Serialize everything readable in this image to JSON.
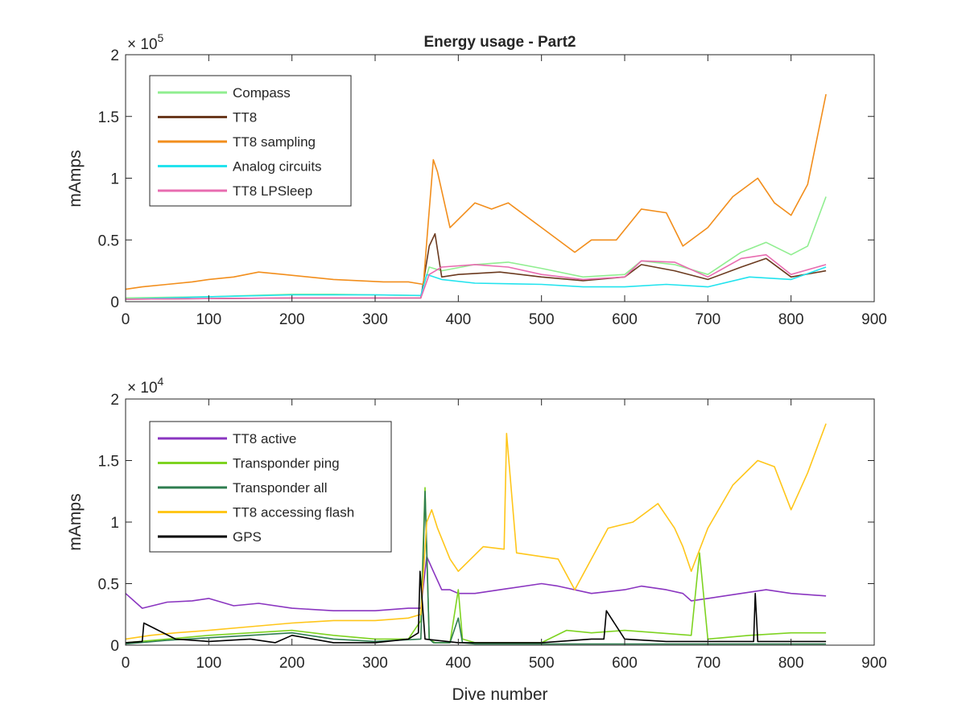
{
  "chart_data": [
    {
      "type": "line",
      "title": "Energy usage - Part2",
      "xlabel": "",
      "ylabel": "mAmps",
      "y_exponent_base": "× 10",
      "y_exponent_power": "5",
      "xlim": [
        0,
        900
      ],
      "ylim": [
        0,
        2
      ],
      "xticks": [
        "0",
        "100",
        "200",
        "300",
        "400",
        "500",
        "600",
        "700",
        "800",
        "900"
      ],
      "yticks": [
        "0",
        "0.5",
        "1",
        "1.5",
        "2"
      ],
      "grid": false,
      "legend_position": "top-left",
      "series": [
        {
          "name": "Compass",
          "color": "#90ee90",
          "x": [
            0,
            50,
            100,
            150,
            200,
            250,
            300,
            355,
            365,
            380,
            420,
            460,
            500,
            550,
            600,
            620,
            660,
            700,
            740,
            770,
            800,
            820,
            842
          ],
          "y": [
            0.03,
            0.035,
            0.04,
            0.05,
            0.06,
            0.06,
            0.055,
            0.05,
            0.28,
            0.25,
            0.3,
            0.32,
            0.27,
            0.2,
            0.22,
            0.33,
            0.3,
            0.22,
            0.4,
            0.48,
            0.38,
            0.45,
            0.85
          ]
        },
        {
          "name": "TT8",
          "color": "#6b3a1f",
          "x": [
            0,
            100,
            200,
            300,
            355,
            365,
            372,
            380,
            400,
            450,
            500,
            550,
            600,
            620,
            660,
            700,
            740,
            770,
            800,
            842
          ],
          "y": [
            0.02,
            0.025,
            0.03,
            0.03,
            0.03,
            0.45,
            0.55,
            0.2,
            0.22,
            0.24,
            0.2,
            0.17,
            0.2,
            0.3,
            0.25,
            0.18,
            0.28,
            0.35,
            0.2,
            0.25
          ]
        },
        {
          "name": "TT8 sampling",
          "color": "#f28e1c",
          "x": [
            0,
            20,
            50,
            80,
            100,
            130,
            160,
            190,
            220,
            250,
            280,
            310,
            340,
            358,
            364,
            370,
            375,
            390,
            420,
            440,
            460,
            500,
            540,
            560,
            590,
            620,
            650,
            670,
            700,
            730,
            760,
            780,
            800,
            820,
            842
          ],
          "y": [
            0.1,
            0.12,
            0.14,
            0.16,
            0.18,
            0.2,
            0.24,
            0.22,
            0.2,
            0.18,
            0.17,
            0.16,
            0.16,
            0.14,
            0.65,
            1.15,
            1.05,
            0.6,
            0.8,
            0.75,
            0.8,
            0.6,
            0.4,
            0.5,
            0.5,
            0.75,
            0.72,
            0.45,
            0.6,
            0.85,
            1.0,
            0.8,
            0.7,
            0.95,
            1.68
          ]
        },
        {
          "name": "Analog circuits",
          "color": "#22e3ee",
          "x": [
            0,
            100,
            200,
            300,
            355,
            362,
            380,
            420,
            500,
            550,
            600,
            650,
            700,
            750,
            800,
            842
          ],
          "y": [
            0.02,
            0.04,
            0.055,
            0.055,
            0.05,
            0.22,
            0.18,
            0.15,
            0.14,
            0.12,
            0.12,
            0.14,
            0.12,
            0.2,
            0.18,
            0.28
          ]
        },
        {
          "name": "TT8 LPSleep",
          "color": "#e86cb0",
          "x": [
            0,
            100,
            200,
            300,
            355,
            365,
            380,
            420,
            460,
            500,
            550,
            600,
            620,
            660,
            700,
            740,
            770,
            800,
            842
          ],
          "y": [
            0.02,
            0.025,
            0.03,
            0.03,
            0.03,
            0.22,
            0.28,
            0.3,
            0.28,
            0.22,
            0.18,
            0.2,
            0.33,
            0.32,
            0.2,
            0.35,
            0.38,
            0.22,
            0.3
          ]
        }
      ]
    },
    {
      "type": "line",
      "title": "",
      "xlabel": "Dive number",
      "ylabel": "mAmps",
      "y_exponent_base": "× 10",
      "y_exponent_power": "4",
      "xlim": [
        0,
        900
      ],
      "ylim": [
        0,
        2
      ],
      "xticks": [
        "0",
        "100",
        "200",
        "300",
        "400",
        "500",
        "600",
        "700",
        "800",
        "900"
      ],
      "yticks": [
        "0",
        "0.5",
        "1",
        "1.5",
        "2"
      ],
      "grid": false,
      "legend_position": "top-left",
      "series": [
        {
          "name": "TT8 active",
          "color": "#8a35c0",
          "x": [
            0,
            20,
            50,
            80,
            100,
            130,
            160,
            200,
            250,
            300,
            340,
            355,
            362,
            370,
            380,
            390,
            400,
            420,
            460,
            500,
            520,
            560,
            600,
            620,
            650,
            670,
            680,
            700,
            740,
            770,
            800,
            842
          ],
          "y": [
            0.42,
            0.3,
            0.35,
            0.36,
            0.38,
            0.32,
            0.34,
            0.3,
            0.28,
            0.28,
            0.3,
            0.3,
            0.72,
            0.6,
            0.45,
            0.45,
            0.42,
            0.42,
            0.46,
            0.5,
            0.48,
            0.42,
            0.45,
            0.48,
            0.45,
            0.42,
            0.36,
            0.38,
            0.42,
            0.45,
            0.42,
            0.4
          ]
        },
        {
          "name": "Transponder ping",
          "color": "#7ed321",
          "x": [
            0,
            50,
            100,
            150,
            200,
            250,
            300,
            340,
            355,
            360,
            365,
            372,
            390,
            400,
            405,
            420,
            500,
            530,
            560,
            600,
            640,
            680,
            690,
            700,
            750,
            800,
            842
          ],
          "y": [
            0.02,
            0.05,
            0.08,
            0.1,
            0.12,
            0.08,
            0.05,
            0.05,
            0.2,
            1.28,
            0.05,
            0.02,
            0.02,
            0.45,
            0.05,
            0.02,
            0.02,
            0.12,
            0.1,
            0.12,
            0.1,
            0.08,
            0.75,
            0.05,
            0.08,
            0.1,
            0.1
          ]
        },
        {
          "name": "Transponder all",
          "color": "#2e7d4f",
          "x": [
            0,
            50,
            100,
            150,
            200,
            250,
            300,
            355,
            360,
            365,
            370,
            390,
            400,
            405,
            420,
            500,
            600,
            700,
            800,
            842
          ],
          "y": [
            0.01,
            0.04,
            0.06,
            0.08,
            0.1,
            0.05,
            0.03,
            0.05,
            1.25,
            0.05,
            0.02,
            0.02,
            0.22,
            0.02,
            0.01,
            0.01,
            0.01,
            0.01,
            0.01,
            0.01
          ]
        },
        {
          "name": "TT8 accessing flash",
          "color": "#ffc61a",
          "x": [
            0,
            30,
            60,
            100,
            150,
            200,
            250,
            300,
            340,
            355,
            362,
            368,
            375,
            390,
            400,
            430,
            455,
            458,
            470,
            520,
            540,
            580,
            610,
            640,
            660,
            670,
            680,
            700,
            730,
            760,
            780,
            800,
            820,
            842
          ],
          "y": [
            0.05,
            0.08,
            0.1,
            0.12,
            0.15,
            0.18,
            0.2,
            0.2,
            0.22,
            0.25,
            1.0,
            1.1,
            0.95,
            0.7,
            0.6,
            0.8,
            0.78,
            1.72,
            0.75,
            0.7,
            0.45,
            0.95,
            1.0,
            1.15,
            0.95,
            0.8,
            0.6,
            0.95,
            1.3,
            1.5,
            1.45,
            1.1,
            1.4,
            1.8
          ]
        },
        {
          "name": "GPS",
          "color": "#000000",
          "x": [
            0,
            20,
            22,
            60,
            100,
            150,
            180,
            200,
            250,
            300,
            340,
            352,
            354,
            360,
            400,
            500,
            560,
            575,
            578,
            600,
            650,
            700,
            755,
            757,
            760,
            800,
            842
          ],
          "y": [
            0.02,
            0.03,
            0.18,
            0.05,
            0.03,
            0.05,
            0.02,
            0.08,
            0.02,
            0.02,
            0.05,
            0.1,
            0.6,
            0.05,
            0.02,
            0.02,
            0.05,
            0.05,
            0.28,
            0.05,
            0.03,
            0.03,
            0.03,
            0.42,
            0.03,
            0.03,
            0.03
          ]
        }
      ]
    }
  ]
}
